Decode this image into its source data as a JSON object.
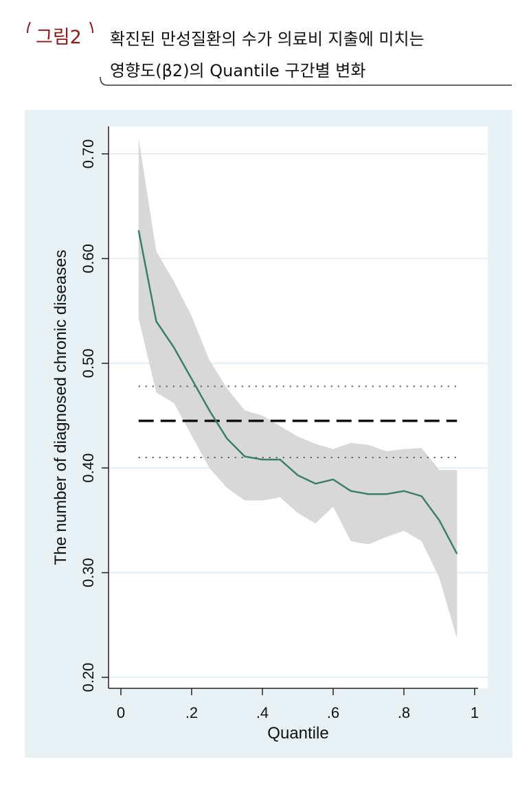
{
  "figure": {
    "label": "그림2",
    "title_line1": "확진된 만성질환의 수가 의료비 지출에 미치는",
    "title_line2": "영향도(β2)의 Quantile 구간별 변화"
  },
  "colors": {
    "panel_bg": "#e8f1f4",
    "plot_bg": "#ffffff",
    "grid": "#e4eef3",
    "band": "#d8d8d8",
    "line": "#3a7f6a",
    "ols": "#111111",
    "ci_dots": "#555555",
    "label_red": "#8b1a1a"
  },
  "chart_data": {
    "type": "line",
    "xlabel": "Quantile",
    "ylabel": "The number of diagnosed chronic diseases",
    "xlim": [
      0,
      1
    ],
    "ylim": [
      0.2,
      0.7
    ],
    "x_ticks": [
      "0",
      ".2",
      ".4",
      ".6",
      ".8",
      "1"
    ],
    "y_ticks": [
      "0.20",
      "0.30",
      "0.40",
      "0.50",
      "0.60",
      "0.70"
    ],
    "grid": true,
    "quantile_estimate": {
      "x": [
        0.05,
        0.1,
        0.15,
        0.2,
        0.25,
        0.3,
        0.35,
        0.4,
        0.45,
        0.5,
        0.55,
        0.6,
        0.65,
        0.7,
        0.75,
        0.8,
        0.85,
        0.9,
        0.95
      ],
      "y": [
        0.627,
        0.54,
        0.515,
        0.485,
        0.455,
        0.428,
        0.411,
        0.408,
        0.408,
        0.393,
        0.385,
        0.389,
        0.378,
        0.375,
        0.375,
        0.378,
        0.373,
        0.35,
        0.318
      ],
      "lower": [
        0.543,
        0.472,
        0.462,
        0.431,
        0.4,
        0.381,
        0.369,
        0.369,
        0.372,
        0.357,
        0.347,
        0.363,
        0.33,
        0.327,
        0.334,
        0.34,
        0.33,
        0.295,
        0.237
      ],
      "upper": [
        0.715,
        0.607,
        0.578,
        0.545,
        0.503,
        0.476,
        0.455,
        0.45,
        0.44,
        0.43,
        0.423,
        0.418,
        0.424,
        0.422,
        0.416,
        0.418,
        0.419,
        0.398,
        0.398
      ]
    },
    "ols_estimate": 0.445,
    "ols_ci": [
      0.41,
      0.478
    ],
    "ols_x_range": [
      0.05,
      0.95
    ]
  }
}
